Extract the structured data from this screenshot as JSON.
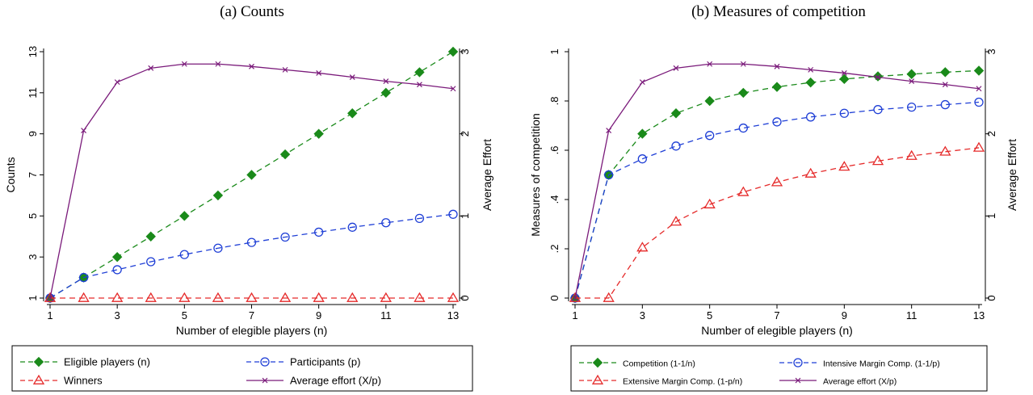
{
  "chart_data": [
    {
      "type": "line",
      "title": "(a) Counts",
      "xlabel": "Number of elegible players (n)",
      "ylabel": "Counts",
      "y2label": "Average Effort",
      "x": [
        1,
        2,
        3,
        4,
        5,
        6,
        7,
        8,
        9,
        10,
        11,
        12,
        13
      ],
      "xticks": [
        "1",
        "3",
        "5",
        "7",
        "9",
        "11",
        "13"
      ],
      "yticks": [
        "1",
        "3",
        "5",
        "7",
        "9",
        "11",
        "13"
      ],
      "y2ticks": [
        "0",
        "1",
        "2",
        "3"
      ],
      "xlim": [
        1,
        13
      ],
      "ylim": [
        1,
        13
      ],
      "y2lim": [
        0,
        3
      ],
      "grid": false,
      "legend_position": "bottom",
      "series": [
        {
          "name": "Eligible players (n)",
          "axis": "left",
          "color": "#1a8a1a",
          "dash": "dashed",
          "marker": "diamond",
          "values": [
            1,
            2,
            3,
            4,
            5,
            6,
            7,
            8,
            9,
            10,
            11,
            12,
            13
          ]
        },
        {
          "name": "Participants (p)",
          "axis": "left",
          "color": "#1f3fd6",
          "dash": "dashed",
          "marker": "circle",
          "values": [
            1,
            2.0,
            2.38,
            2.77,
            3.12,
            3.43,
            3.71,
            3.97,
            4.21,
            4.45,
            4.67,
            4.88,
            5.08
          ]
        },
        {
          "name": "Winners",
          "axis": "left",
          "color": "#e52a2a",
          "dash": "dashed",
          "marker": "triangle",
          "values": [
            1,
            1,
            1,
            1,
            1,
            1,
            1,
            1,
            1,
            1,
            1,
            1,
            1
          ]
        },
        {
          "name": "Average effort (X/p)",
          "axis": "right",
          "color": "#7a1a7a",
          "dash": "solid",
          "marker": "x",
          "values": [
            0,
            2.04,
            2.63,
            2.8,
            2.85,
            2.85,
            2.82,
            2.78,
            2.74,
            2.69,
            2.64,
            2.6,
            2.55
          ]
        }
      ]
    },
    {
      "type": "line",
      "title": "(b) Measures of competition",
      "xlabel": "Number of elegible players (n)",
      "ylabel": "Measures of competition",
      "y2label": "Average Effort",
      "x": [
        1,
        2,
        3,
        4,
        5,
        6,
        7,
        8,
        9,
        10,
        11,
        12,
        13
      ],
      "xticks": [
        "1",
        "3",
        "5",
        "7",
        "9",
        "11",
        "13"
      ],
      "yticks": [
        "0",
        ".2",
        ".4",
        ".6",
        ".8",
        "1"
      ],
      "y2ticks": [
        "0",
        "1",
        "2",
        "3"
      ],
      "xlim": [
        1,
        13
      ],
      "ylim": [
        0,
        1
      ],
      "y2lim": [
        0,
        3
      ],
      "grid": false,
      "legend_position": "bottom",
      "series": [
        {
          "name": "Competition (1-1/n)",
          "axis": "left",
          "color": "#1a8a1a",
          "dash": "dashed",
          "marker": "diamond",
          "values": [
            0,
            0.5,
            0.667,
            0.75,
            0.8,
            0.833,
            0.857,
            0.875,
            0.889,
            0.9,
            0.909,
            0.917,
            0.923
          ]
        },
        {
          "name": "Intensive Margin Comp. (1-1/p)",
          "axis": "left",
          "color": "#1f3fd6",
          "dash": "dashed",
          "marker": "circle",
          "values": [
            0,
            0.5,
            0.565,
            0.617,
            0.66,
            0.69,
            0.715,
            0.735,
            0.75,
            0.765,
            0.775,
            0.785,
            0.795
          ]
        },
        {
          "name": "Extensive Margin Comp. (1-p/n)",
          "axis": "left",
          "color": "#e52a2a",
          "dash": "dashed",
          "marker": "triangle",
          "values": [
            0,
            0,
            0.205,
            0.31,
            0.38,
            0.43,
            0.47,
            0.505,
            0.533,
            0.556,
            0.577,
            0.594,
            0.61
          ]
        },
        {
          "name": "Average effort (X/p)",
          "axis": "right",
          "color": "#7a1a7a",
          "dash": "solid",
          "marker": "x",
          "values": [
            0,
            2.04,
            2.63,
            2.8,
            2.85,
            2.85,
            2.82,
            2.78,
            2.74,
            2.69,
            2.64,
            2.6,
            2.55
          ]
        }
      ]
    }
  ]
}
